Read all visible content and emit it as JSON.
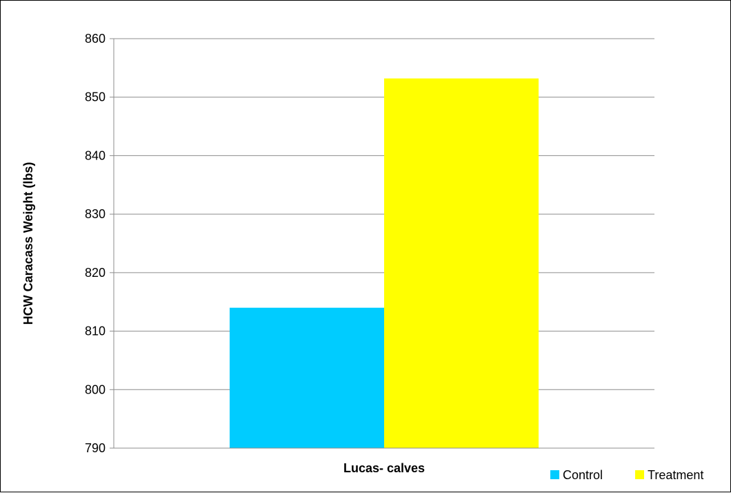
{
  "chart_data": {
    "type": "bar",
    "categories": [
      "Lucas- calves"
    ],
    "series": [
      {
        "name": "Control",
        "values": [
          814
        ],
        "color": "#00CCFF"
      },
      {
        "name": "Treatment",
        "values": [
          853.2
        ],
        "color": "#FFFF00"
      }
    ],
    "xlabel": "Lucas- calves",
    "ylabel": "HCW Caracass Weight (lbs)",
    "ylim": [
      790,
      860
    ],
    "yticks": [
      790,
      800,
      810,
      820,
      830,
      840,
      850,
      860
    ],
    "grid": true,
    "legend": "bottom-right"
  }
}
